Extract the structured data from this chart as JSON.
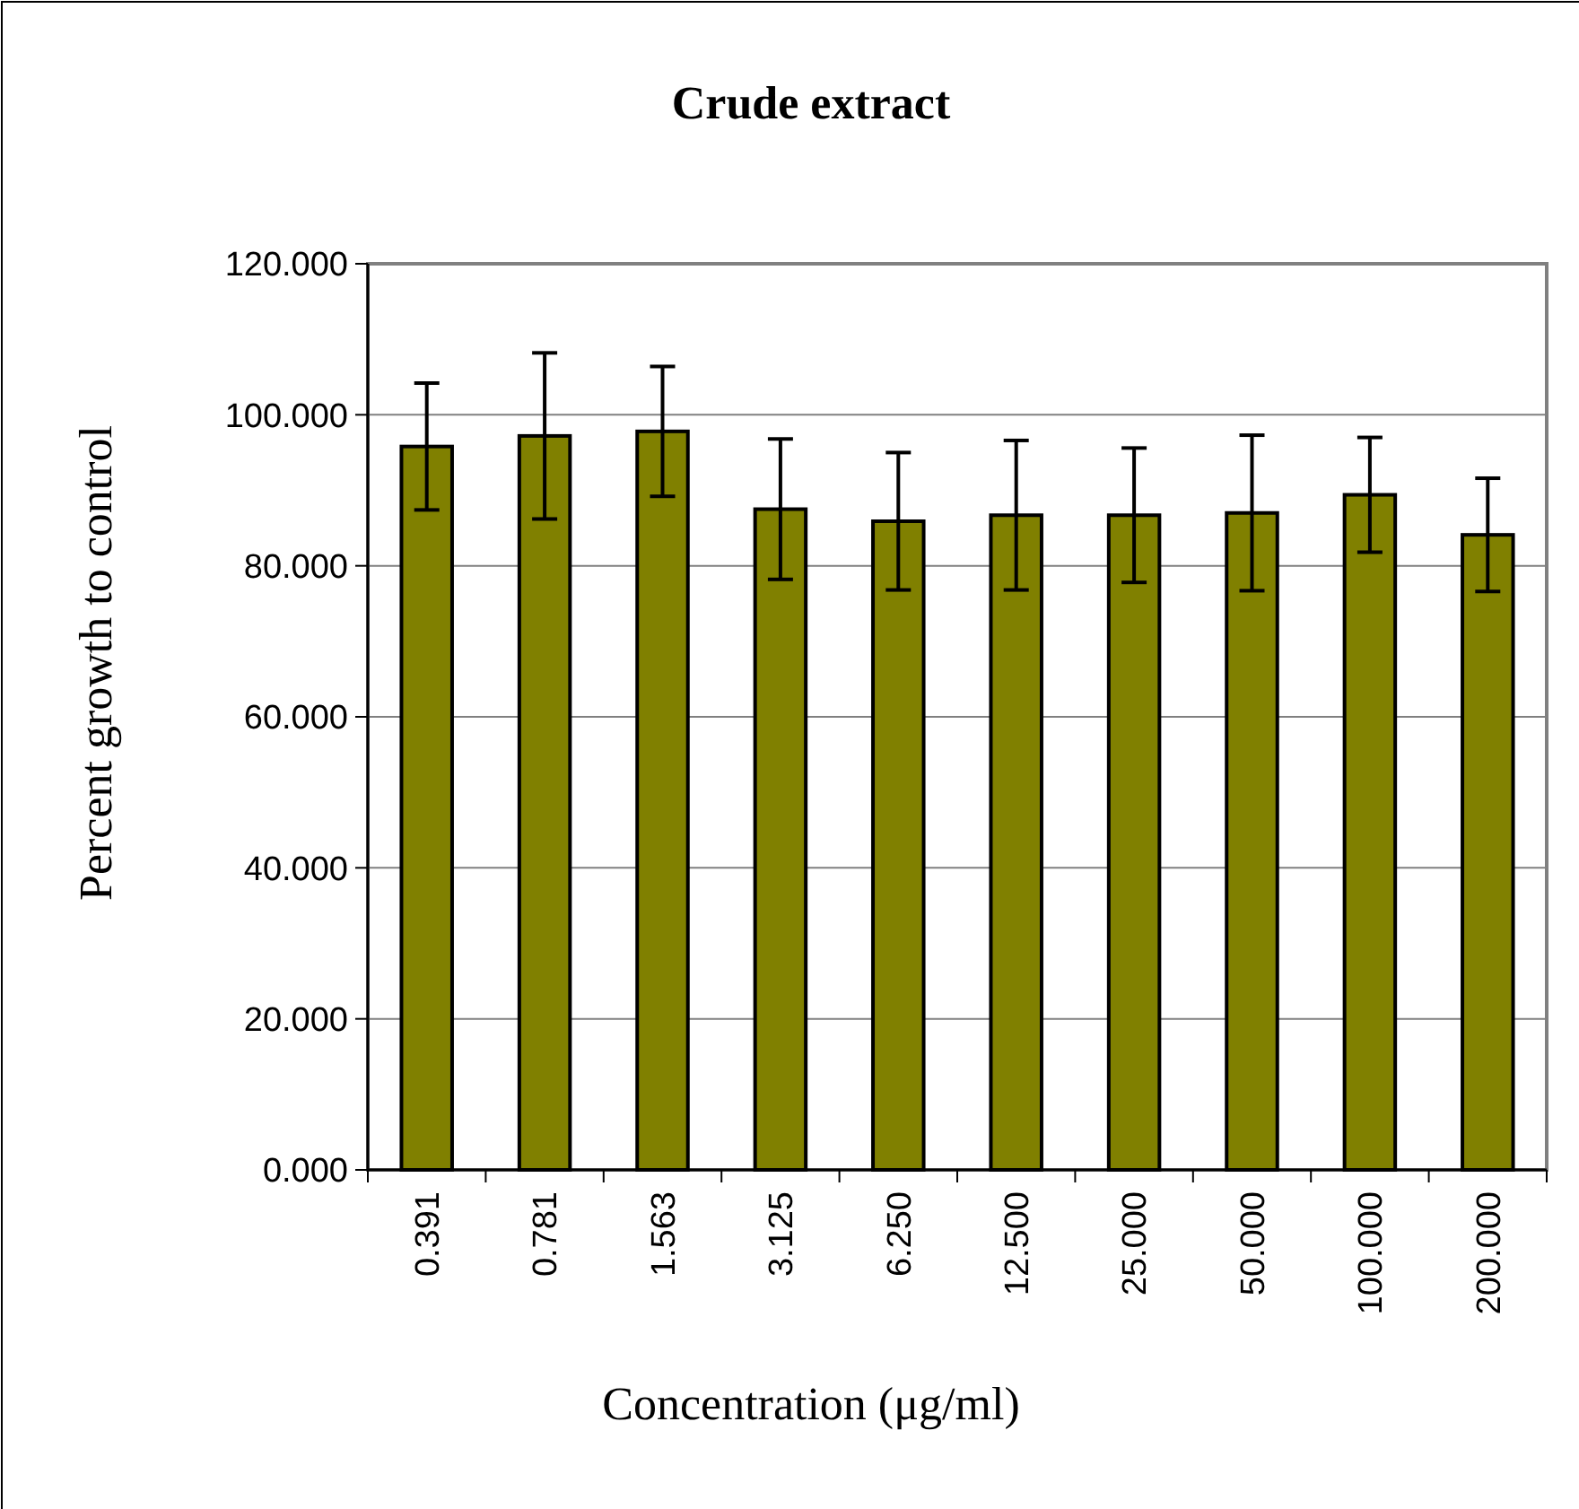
{
  "chart_data": {
    "type": "bar",
    "title": "Crude extract",
    "xlabel": "Concentration (μg/ml)",
    "ylabel": "Percent growth to control",
    "categories": [
      "0.391",
      "0.781",
      "1.563",
      "3.125",
      "6.250",
      "12.500",
      "25.000",
      "50.000",
      "100.000",
      "200.000"
    ],
    "values": [
      95.8,
      97.2,
      97.8,
      87.5,
      85.9,
      86.7,
      86.7,
      87.0,
      89.4,
      84.1
    ],
    "errors": [
      8.4,
      11.0,
      8.6,
      9.3,
      9.1,
      9.9,
      8.9,
      10.3,
      7.6,
      7.5
    ],
    "color": "#808000",
    "ylim": [
      0,
      120
    ],
    "yticks": [
      {
        "value": 0,
        "label": "0.000"
      },
      {
        "value": 20,
        "label": "20.000"
      },
      {
        "value": 40,
        "label": "40.000"
      },
      {
        "value": 60,
        "label": "60.000"
      },
      {
        "value": 80,
        "label": "80.000"
      },
      {
        "value": 100,
        "label": "100.000"
      },
      {
        "value": 120,
        "label": "120.000"
      }
    ],
    "grid": "y"
  }
}
